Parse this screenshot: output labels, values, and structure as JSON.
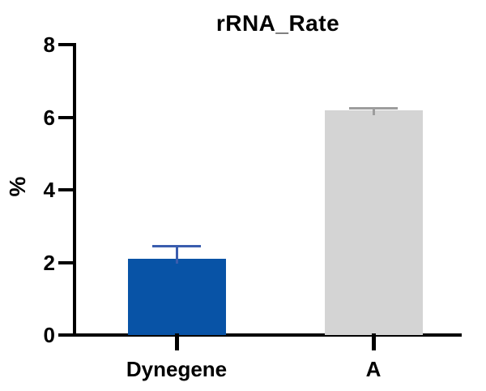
{
  "chart_data": {
    "type": "bar",
    "title": "rRNA_Rate",
    "ylabel": "%",
    "xlabel": "",
    "categories": [
      "Dynegene",
      "A"
    ],
    "values": [
      2.1,
      6.2
    ],
    "errors": [
      0.35,
      0.05
    ],
    "error_direction": "plus",
    "ylim": [
      0,
      8
    ],
    "yticks": [
      0,
      2,
      4,
      6,
      8
    ],
    "bar_colors": [
      "#0853a6",
      "#d4d4d4"
    ],
    "error_bar_colors": [
      "#3a5dae",
      "#9d9d9d"
    ],
    "axis_color": "#000000",
    "text_color": "#000000",
    "background_color": "#ffffff",
    "grid": false,
    "legend": "none"
  }
}
